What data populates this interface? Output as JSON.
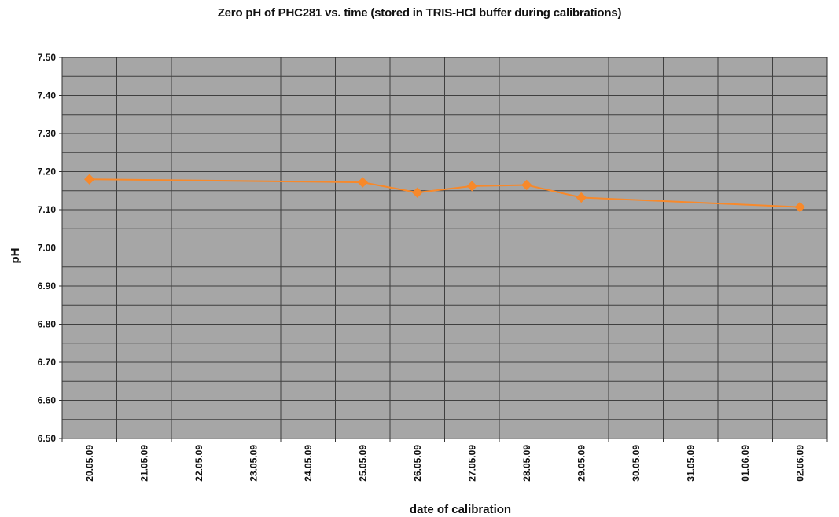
{
  "chart_data": {
    "type": "line",
    "title": "Zero pH of PHC281 vs. time (stored in TRIS-HCl buffer during calibrations)",
    "xlabel": "date of calibration",
    "ylabel": "pH",
    "categories": [
      "20.05.09",
      "21.05.09",
      "22.05.09",
      "23.05.09",
      "24.05.09",
      "25.05.09",
      "26.05.09",
      "27.05.09",
      "28.05.09",
      "29.05.09",
      "30.05.09",
      "31.05.09",
      "01.06.09",
      "02.06.09"
    ],
    "y_ticks": [
      "6.50",
      "6.60",
      "6.70",
      "6.80",
      "6.90",
      "7.00",
      "7.10",
      "7.20",
      "7.30",
      "7.40",
      "7.50"
    ],
    "ylim": [
      6.5,
      7.5
    ],
    "y_gridlines_minor_step": 0.05,
    "grid": true,
    "legend": "none",
    "series": [
      {
        "x": [
          "20.05.09",
          "25.05.09",
          "26.05.09",
          "27.05.09",
          "28.05.09",
          "29.05.09",
          "02.06.09"
        ],
        "y": [
          7.18,
          7.172,
          7.145,
          7.162,
          7.165,
          7.132,
          7.107
        ],
        "color": "#f7892b",
        "marker": "diamond"
      }
    ],
    "plot_background": "#a6a6a6",
    "grid_color": "#3f3f3f"
  }
}
